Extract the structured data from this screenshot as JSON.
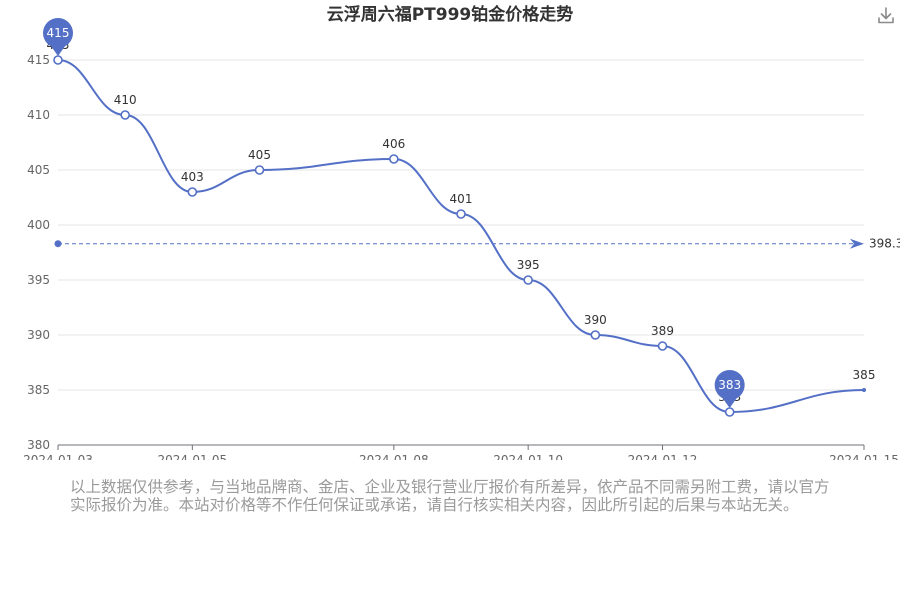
{
  "chart_data": {
    "type": "line",
    "title": "云浮周六福PT999铂金价格走势",
    "x": [
      "2024-01-03",
      "2024-01-04",
      "2024-01-05",
      "2024-01-06",
      "2024-01-08",
      "2024-01-09",
      "2024-01-10",
      "2024-01-11",
      "2024-01-12",
      "2024-01-13",
      "2024-01-15"
    ],
    "x_tick_labels": [
      "2024-01-03",
      "2024-01-05",
      "2024-01-08",
      "2024-01-10",
      "2024-01-12",
      "2024-01-15"
    ],
    "series": [
      {
        "values": [
          415,
          410,
          403,
          405,
          406,
          401,
          395,
          390,
          389,
          383,
          385
        ]
      }
    ],
    "ylim": [
      380,
      415
    ],
    "y_ticks": [
      380,
      385,
      390,
      395,
      400,
      405,
      410,
      415
    ],
    "average_line": {
      "value": 398.3,
      "label": "398.3"
    },
    "max_marker": {
      "value": 415,
      "label": "415"
    },
    "min_marker": {
      "value": 383,
      "label": "383"
    },
    "grid": true,
    "line_color": "#5470c6"
  },
  "disclaimer": "以上数据仅供参考，与当地品牌商、金店、企业及银行营业厅报价有所差异，依产品不同需另附工费，请以官方实际报价为准。本站对价格等不作任何保证或承诺，请自行核实相关内容，因此所引起的后果与本站无关。",
  "toolbar": {
    "download_icon": "download-icon"
  }
}
